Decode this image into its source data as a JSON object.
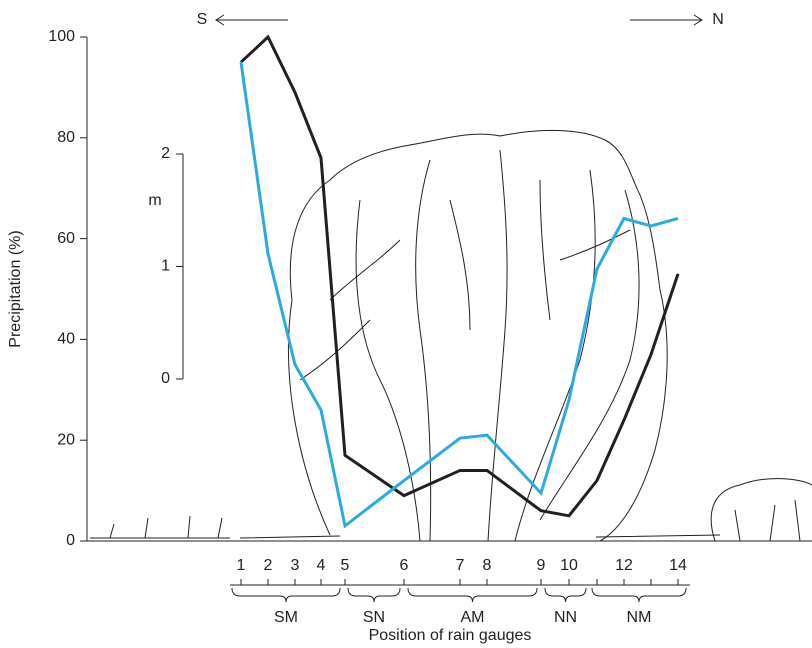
{
  "chart_data": {
    "type": "line",
    "xlabel": "Position of rain gauges",
    "ylabel": "Precipitation (%)",
    "direction_labels": {
      "left": "S",
      "right": "N"
    },
    "categories": [
      "1",
      "2",
      "3",
      "4",
      "5",
      "6",
      "7",
      "8",
      "9",
      "10",
      null,
      "12",
      null,
      "14"
    ],
    "groups": [
      "SM",
      "SN",
      "AM",
      "NN",
      "NM"
    ],
    "series": [
      {
        "color": "#231f20",
        "values": [
          95,
          100,
          89,
          76,
          17,
          9,
          14,
          14,
          6,
          5,
          12,
          24,
          37,
          53
        ]
      },
      {
        "color": "#29abe2",
        "values": [
          95,
          57,
          35,
          26,
          3,
          12,
          20.4,
          21,
          9.5,
          28,
          54,
          64,
          62.5,
          64
        ]
      }
    ],
    "ylim": [
      0,
      100
    ],
    "yticks": [
      0,
      20,
      40,
      60,
      80,
      100
    ],
    "scale_bar": {
      "label": "m",
      "lim": [
        0,
        2
      ],
      "ticks": [
        0,
        1,
        2
      ]
    }
  }
}
